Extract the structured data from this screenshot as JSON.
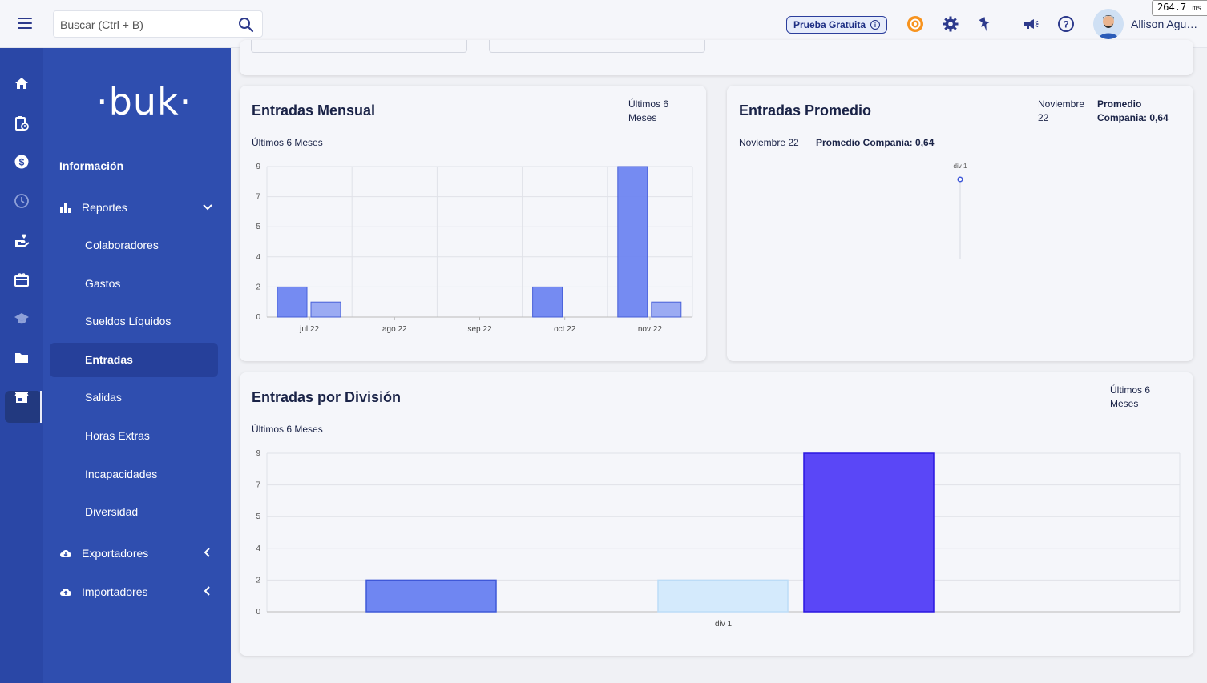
{
  "header": {
    "search_placeholder": "Buscar (Ctrl + B)",
    "trial_label": "Prueba Gratuita",
    "user_name": "Allison Agu…",
    "perf_value": "264.7",
    "perf_unit": "ms"
  },
  "sidebar": {
    "logo": "·buk·",
    "section": "Información",
    "reportes_label": "Reportes",
    "items": [
      {
        "label": "Colaboradores"
      },
      {
        "label": "Gastos"
      },
      {
        "label": "Sueldos Líquidos"
      },
      {
        "label": "Entradas"
      },
      {
        "label": "Salidas"
      },
      {
        "label": "Horas Extras"
      },
      {
        "label": "Incapacidades"
      },
      {
        "label": "Diversidad"
      }
    ],
    "exportadores_label": "Exportadores",
    "importadores_label": "Importadores"
  },
  "cards": {
    "mensual": {
      "title": "Entradas Mensual",
      "subtitle": "Últimos 6 Meses",
      "corner": "Últimos 6\nMeses"
    },
    "promedio": {
      "title": "Entradas Promedio",
      "subtitle_left": "Noviembre 22",
      "subtitle_right": "Promedio Compania: 0,64",
      "corner_left": "Noviembre\n22",
      "corner_right": "Promedio\nCompania: 0,64"
    },
    "division": {
      "title": "Entradas por División",
      "subtitle": "Últimos 6 Meses",
      "corner": "Últimos 6\nMeses"
    }
  },
  "colors": {
    "sidebar": "#2f4eaf",
    "rail": "#2a47a6",
    "bar_primary": "#6f86f2",
    "bar_secondary": "#97a7f3",
    "bar_light": "#d4eafc",
    "bar_strong": "#5a47f7"
  },
  "chart_data": [
    {
      "type": "bar",
      "categories": [
        "jul 22",
        "ago 22",
        "sep 22",
        "oct 22",
        "nov 22"
      ],
      "series": [
        {
          "values": [
            2,
            0,
            0,
            2,
            9
          ]
        },
        {
          "values": [
            1,
            0,
            0,
            0,
            1
          ]
        }
      ],
      "yticks": [
        0,
        2,
        4,
        5,
        7,
        9
      ],
      "ylim": [
        0,
        9
      ],
      "grid": true
    },
    {
      "type": "scatter",
      "categories": [
        "div 1"
      ],
      "values": [
        0.64
      ],
      "grid": false
    },
    {
      "type": "bar",
      "categories": [
        "div 1"
      ],
      "series": [
        {
          "values": [
            2
          ]
        },
        {
          "values": [
            0
          ]
        },
        {
          "values": [
            2
          ]
        },
        {
          "values": [
            9
          ]
        }
      ],
      "yticks": [
        0,
        2,
        4,
        5,
        7,
        9
      ],
      "ylim": [
        0,
        9
      ],
      "grid": true
    }
  ]
}
